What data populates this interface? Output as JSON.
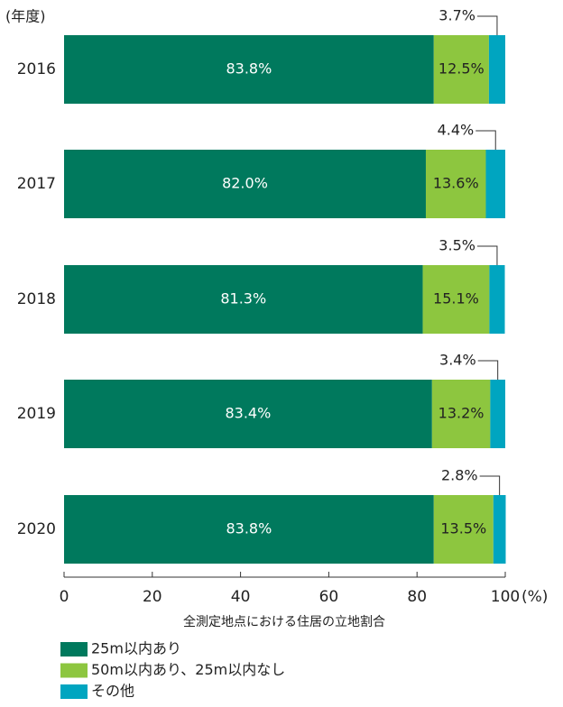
{
  "chart_data": {
    "type": "stacked_bar_horizontal",
    "y_label": "(年度)",
    "x_label": "全測定地点における住居の立地割合",
    "x_unit": "(%)",
    "categories": [
      "2016",
      "2017",
      "2018",
      "2019",
      "2020"
    ],
    "series": [
      {
        "name": "25m以内あり",
        "color": "#00795d",
        "values": [
          83.8,
          82.0,
          81.3,
          83.4,
          83.8
        ],
        "value_labels": [
          "83.8%",
          "82.0%",
          "81.3%",
          "83.4%",
          "83.8%"
        ]
      },
      {
        "name": "50m以内あり、25m以内なし",
        "color": "#8dc63f",
        "values": [
          12.5,
          13.6,
          15.1,
          13.2,
          13.5
        ],
        "value_labels": [
          "12.5%",
          "13.6%",
          "15.1%",
          "13.2%",
          "13.5%"
        ]
      },
      {
        "name": "その他",
        "color": "#00a5c0",
        "values": [
          3.7,
          4.4,
          3.5,
          3.4,
          2.8
        ],
        "value_labels": [
          "3.7%",
          "4.4%",
          "3.5%",
          "3.4%",
          "2.8%"
        ]
      }
    ],
    "xlim": [
      0,
      100
    ],
    "xticks": [
      0,
      20,
      40,
      60,
      80,
      100
    ]
  }
}
